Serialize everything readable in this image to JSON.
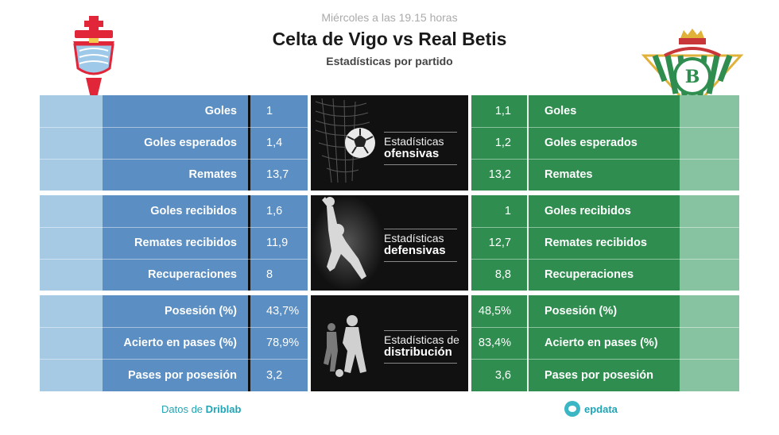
{
  "header": {
    "kickoff": "Miércoles a las 19.15 horas",
    "title": "Celta de Vigo vs Real Betis",
    "subtitle": "Estadísticas por partido"
  },
  "colors": {
    "celta_blue": "#5b8ec2",
    "celta_light": "#a6c9e4",
    "betis_green": "#2f8e4f",
    "betis_light": "#87c3a0",
    "panel_dark": "#111111"
  },
  "sections": [
    {
      "panel_small": "Estadísticas",
      "panel_big": "ofensivas",
      "rows": [
        {
          "left_label": "Goles",
          "left_value": "1",
          "right_value": "1,1",
          "right_label": "Goles"
        },
        {
          "left_label": "Goles esperados",
          "left_value": "1,4",
          "right_value": "1,2",
          "right_label": "Goles esperados"
        },
        {
          "left_label": "Remates",
          "left_value": "13,7",
          "right_value": "13,2",
          "right_label": "Remates"
        }
      ]
    },
    {
      "panel_small": "Estadísticas",
      "panel_big": "defensivas",
      "rows": [
        {
          "left_label": "Goles recibidos",
          "left_value": "1,6",
          "right_value": "1",
          "right_label": "Goles recibidos"
        },
        {
          "left_label": "Remates recibidos",
          "left_value": "11,9",
          "right_value": "12,7",
          "right_label": "Remates recibidos"
        },
        {
          "left_label": "Recuperaciones",
          "left_value": "8",
          "right_value": "8,8",
          "right_label": "Recuperaciones"
        }
      ]
    },
    {
      "panel_small": "Estadísticas de",
      "panel_big": "distribución",
      "rows": [
        {
          "left_label": "Posesión (%)",
          "left_value": "43,7%",
          "right_value": "48,5%",
          "right_label": "Posesión (%)"
        },
        {
          "left_label": "Acierto en pases (%)",
          "left_value": "78,9%",
          "right_value": "83,4%",
          "right_label": "Acierto en pases (%)"
        },
        {
          "left_label": "Pases por posesión",
          "left_value": "3,2",
          "right_value": "3,6",
          "right_label": "Pases por posesión"
        }
      ]
    }
  ],
  "footer": {
    "source_prefix": "Datos de",
    "source_name": "Driblab",
    "brand": "epdata"
  },
  "icons": {
    "celta_crest": "celta-crest-icon",
    "betis_crest": "betis-crest-icon",
    "ball": "soccer-ball-icon",
    "goalkeeper": "goalkeeper-icon",
    "players": "players-icon",
    "brand": "epdata-icon"
  }
}
